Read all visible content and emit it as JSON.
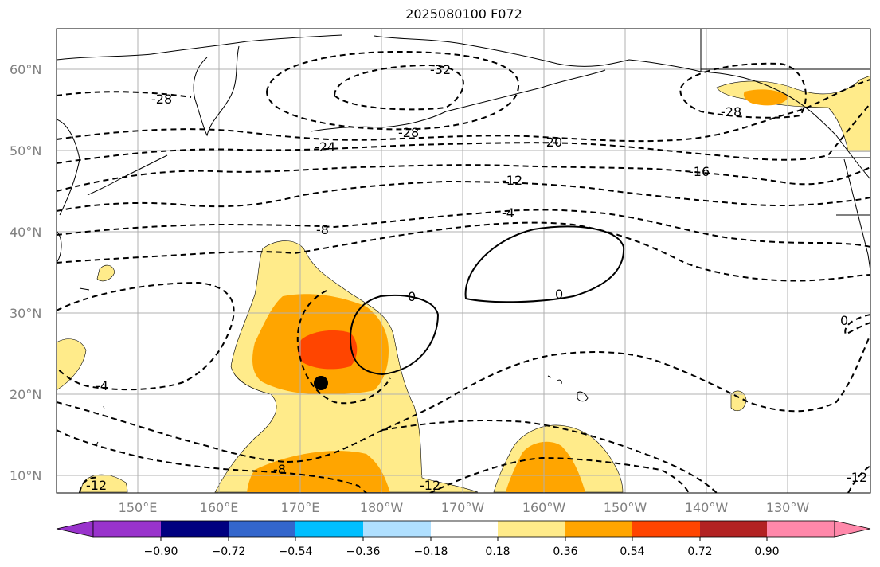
{
  "title": "2025080100 F072",
  "lat_labels": [
    "60°N",
    "50°N",
    "40°N",
    "30°N",
    "20°N",
    "10°N"
  ],
  "lon_labels": [
    "150°E",
    "160°E",
    "170°E",
    "180°W",
    "170°W",
    "160°W",
    "150°W",
    "140°W",
    "130°W"
  ],
  "colorbar": {
    "ticks": [
      "−0.90",
      "−0.72",
      "−0.54",
      "−0.36",
      "−0.18",
      "0.18",
      "0.36",
      "0.54",
      "0.72",
      "0.90"
    ],
    "colors": [
      "#9933cc",
      "#000080",
      "#3366cc",
      "#00bfff",
      "#b0e0ff",
      "#ffffff",
      "#ffeb8a",
      "#ffa500",
      "#ff4500",
      "#b22222",
      "#ff88aa"
    ]
  },
  "shading_colors": {
    "light": "#ffeb8a",
    "medium": "#ffa500",
    "strong": "#ff4500"
  },
  "contour_labels": [
    "-32",
    "-28",
    "-28",
    "-28",
    "-24",
    "-20",
    "-16",
    "-12",
    "-8",
    "-4",
    "0",
    "0",
    "0",
    "-4",
    "-8",
    "-12",
    "-12",
    "-12"
  ],
  "marker": "storm-center"
}
